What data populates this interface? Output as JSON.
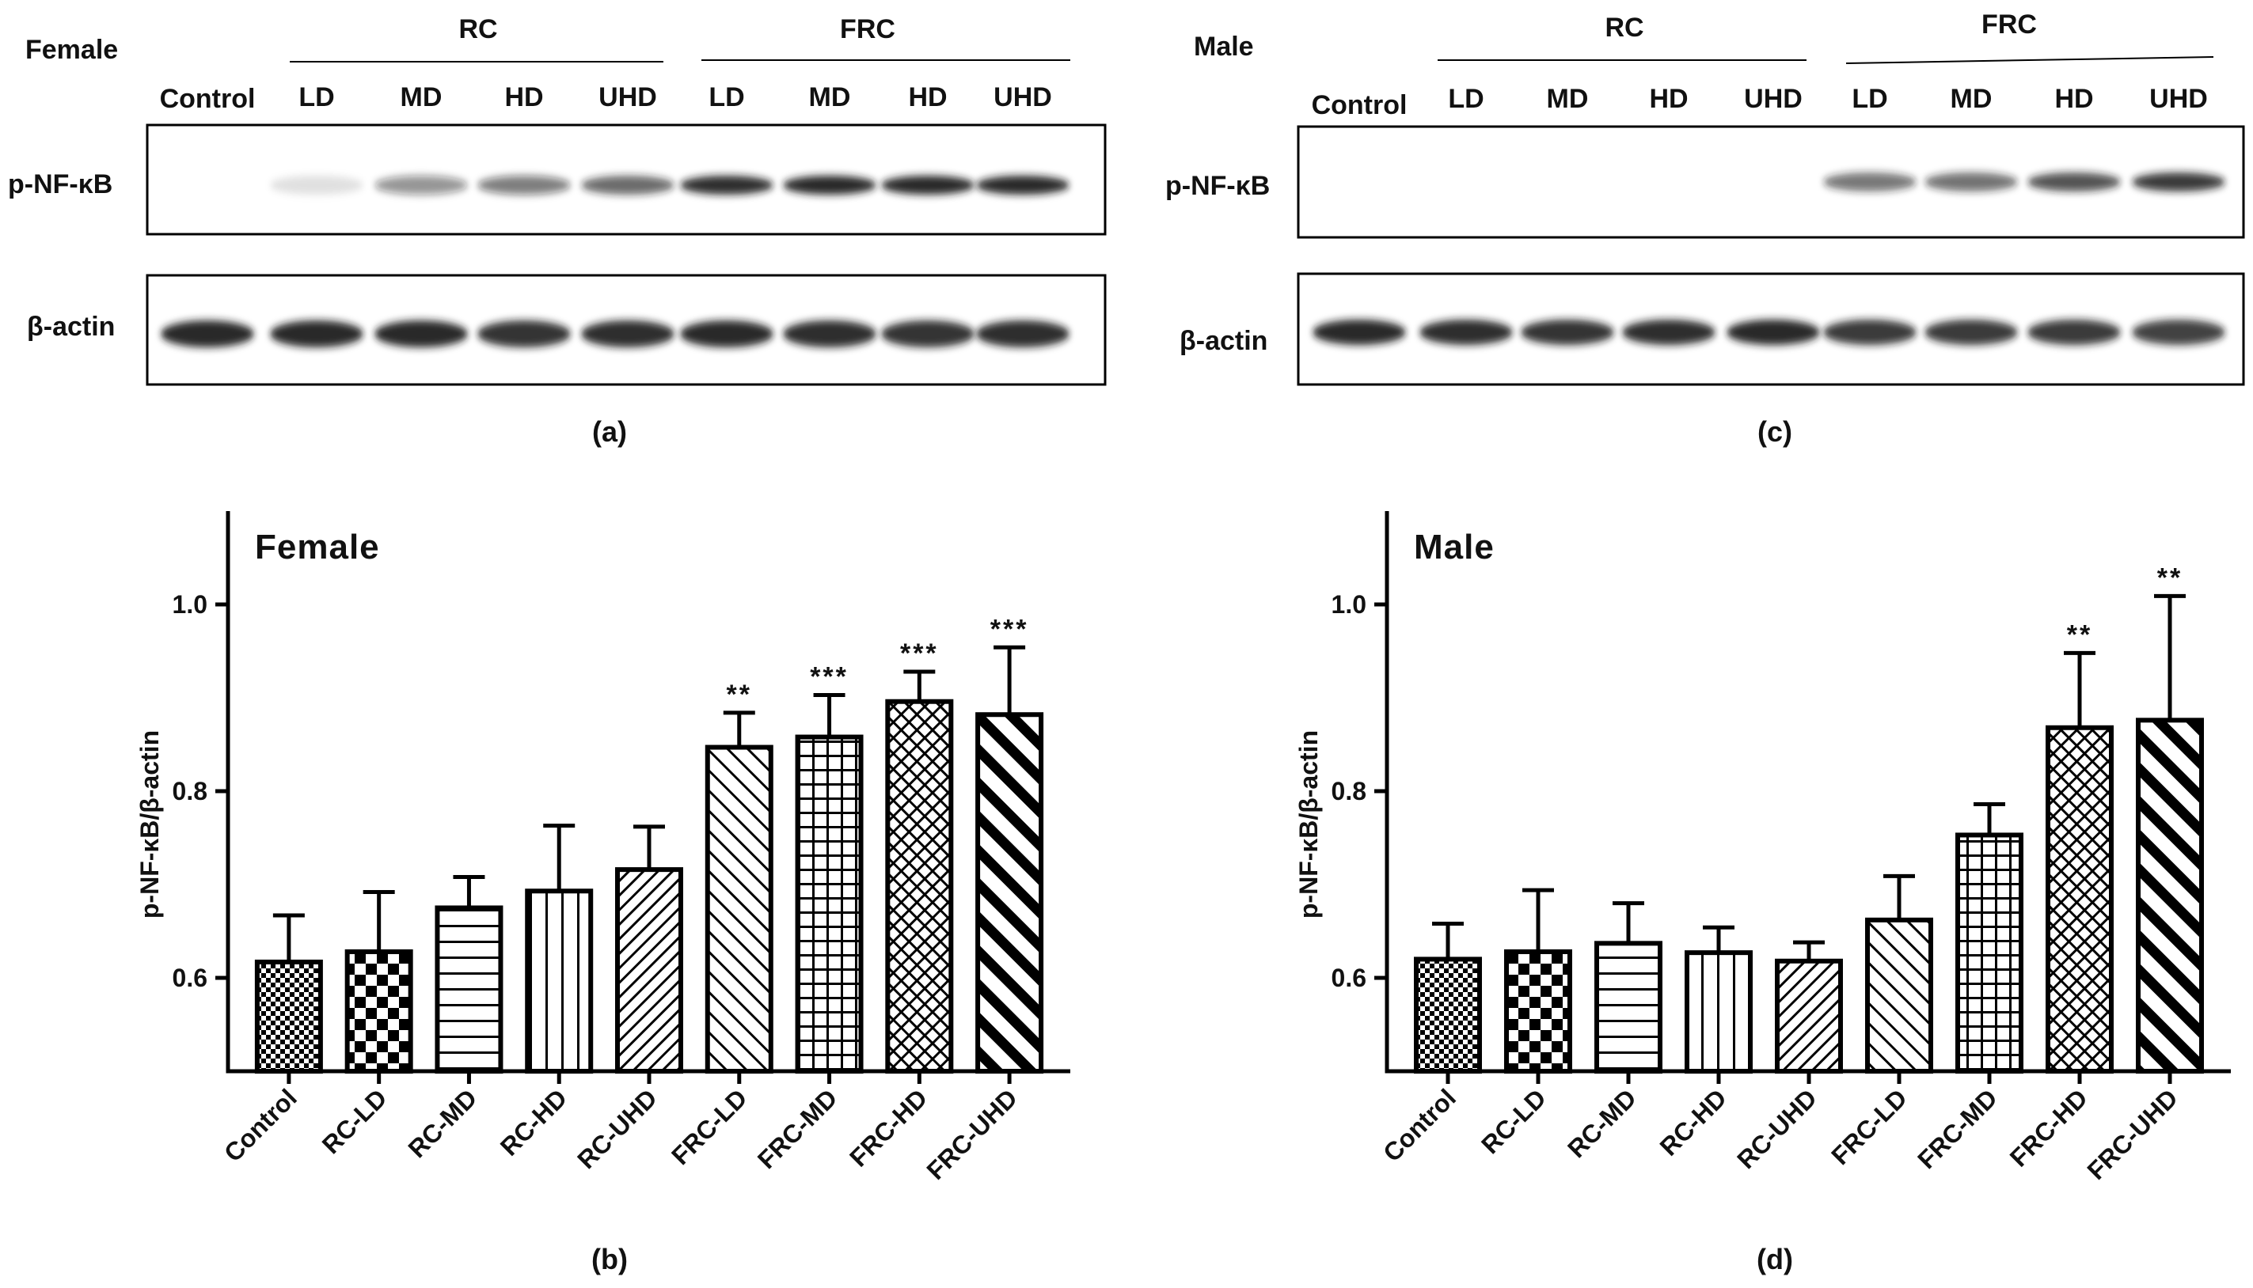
{
  "colors": {
    "ink": "#000000",
    "band": "#1a1a1a",
    "background": "#ffffff"
  },
  "blots": [
    {
      "id": "a",
      "sex_label": "Female",
      "groups": [
        {
          "name": "RC",
          "lanes": [
            "LD",
            "MD",
            "HD",
            "UHD"
          ]
        },
        {
          "name": "FRC",
          "lanes": [
            "LD",
            "MD",
            "HD",
            "UHD"
          ]
        }
      ],
      "control_label": "Control",
      "row_labels": [
        "p-NF-κB",
        "β-actin"
      ],
      "p_nfkb_intensity": [
        0.0,
        0.12,
        0.45,
        0.55,
        0.65,
        0.9,
        0.95,
        0.95,
        0.92
      ],
      "actin_intensity": [
        0.95,
        0.92,
        0.95,
        0.88,
        0.9,
        0.92,
        0.9,
        0.88,
        0.9
      ],
      "panel_label": "(a)"
    },
    {
      "id": "c",
      "sex_label": "Male",
      "groups": [
        {
          "name": "RC",
          "lanes": [
            "LD",
            "MD",
            "HD",
            "UHD"
          ]
        },
        {
          "name": "FRC",
          "lanes": [
            "LD",
            "MD",
            "HD",
            "UHD"
          ]
        }
      ],
      "control_label": "Control",
      "row_labels": [
        "p-NF-κB",
        "β-actin"
      ],
      "p_nfkb_intensity": [
        0.0,
        0.0,
        0.0,
        0.0,
        0.0,
        0.6,
        0.62,
        0.75,
        0.85
      ],
      "actin_intensity": [
        0.92,
        0.9,
        0.88,
        0.9,
        0.95,
        0.85,
        0.85,
        0.85,
        0.82
      ],
      "panel_label": "(c)"
    }
  ],
  "chart_data": [
    {
      "type": "bar",
      "title": "Female",
      "panel_label": "(b)",
      "ylabel": "p-NF-κB/β-actin",
      "xlabel": "",
      "ylim": [
        0.5,
        1.1
      ],
      "yticks": [
        0.6,
        0.8,
        1.0
      ],
      "ytick_labels": [
        "0.6",
        "0.8",
        "1.0"
      ],
      "categories": [
        "Control",
        "RC-LD",
        "RC-MD",
        "RC-HD",
        "RC-UHD",
        "FRC-LD",
        "FRC-MD",
        "FRC-HD",
        "FRC-UHD"
      ],
      "values": [
        0.617,
        0.628,
        0.675,
        0.693,
        0.716,
        0.847,
        0.858,
        0.896,
        0.882
      ],
      "errors": [
        0.05,
        0.064,
        0.033,
        0.07,
        0.046,
        0.037,
        0.045,
        0.032,
        0.072
      ],
      "significance": [
        "",
        "",
        "",
        "",
        "",
        "**",
        "***",
        "***",
        "***"
      ],
      "patterns": [
        "checker-fine",
        "checker-coarse",
        "horizontal",
        "vertical",
        "diagonal-fine",
        "diagonal-sparse",
        "grid",
        "crosshatch",
        "diagonal-thick"
      ]
    },
    {
      "type": "bar",
      "title": "Male",
      "panel_label": "(d)",
      "ylabel": "p-NF-κB/β-actin",
      "xlabel": "",
      "ylim": [
        0.5,
        1.1
      ],
      "yticks": [
        0.6,
        0.8,
        1.0
      ],
      "ytick_labels": [
        "0.6",
        "0.8",
        "1.0"
      ],
      "categories": [
        "Control",
        "RC-LD",
        "RC-MD",
        "RC-HD",
        "RC-UHD",
        "FRC-LD",
        "FRC-MD",
        "FRC-HD",
        "FRC-UHD"
      ],
      "values": [
        0.62,
        0.628,
        0.637,
        0.627,
        0.618,
        0.662,
        0.753,
        0.868,
        0.876
      ],
      "errors": [
        0.038,
        0.066,
        0.043,
        0.027,
        0.02,
        0.047,
        0.033,
        0.08,
        0.133
      ],
      "significance": [
        "",
        "",
        "",
        "",
        "",
        "",
        "",
        "**",
        "**"
      ],
      "patterns": [
        "checker-fine",
        "checker-coarse",
        "horizontal",
        "vertical",
        "diagonal-fine",
        "diagonal-sparse",
        "grid",
        "crosshatch",
        "diagonal-thick"
      ]
    }
  ]
}
